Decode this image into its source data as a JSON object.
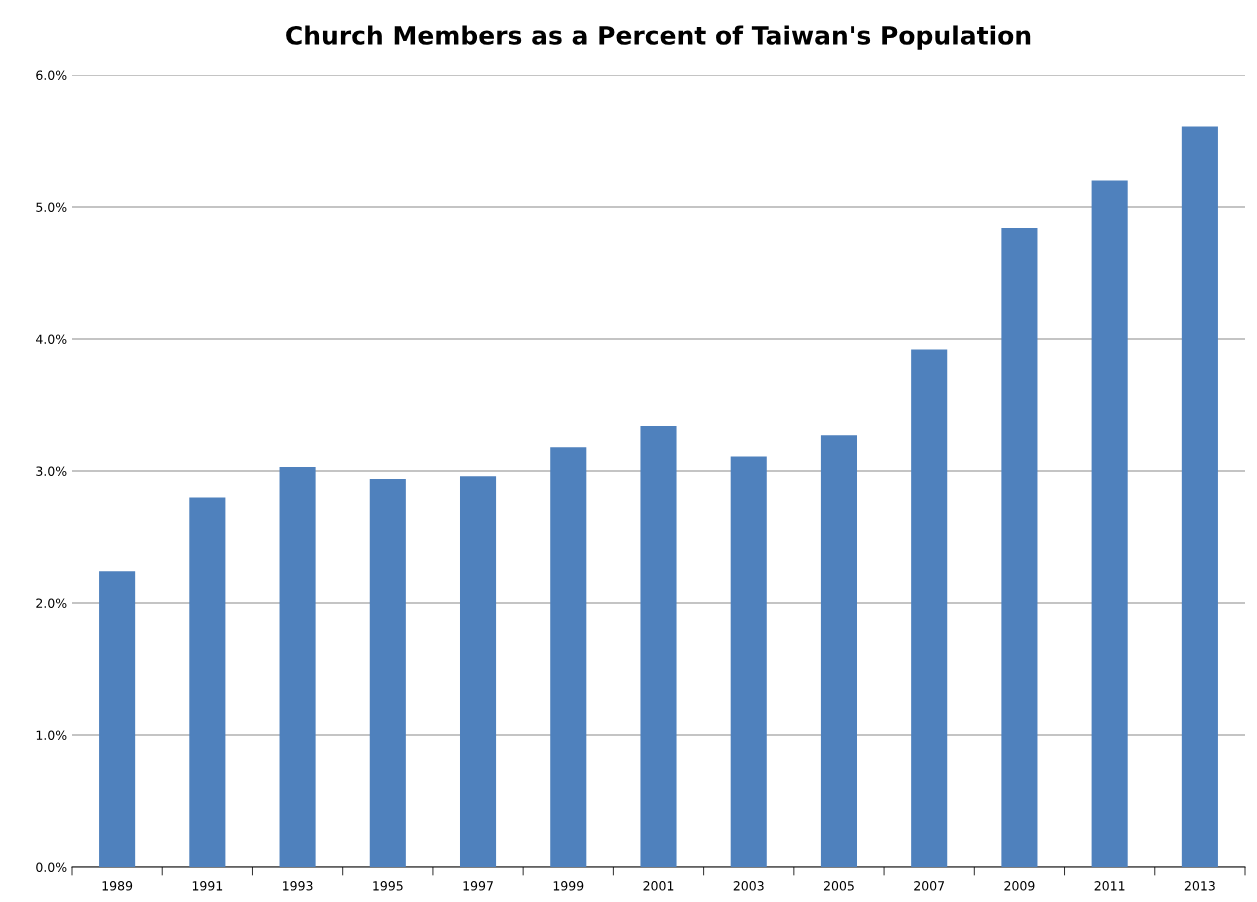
{
  "chart_data": {
    "type": "bar",
    "title": "Church Members as a Percent of Taiwan's Population",
    "categories": [
      "1989",
      "1991",
      "1993",
      "1995",
      "1997",
      "1999",
      "2001",
      "2003",
      "2005",
      "2007",
      "2009",
      "2011",
      "2013"
    ],
    "values": [
      2.24,
      2.8,
      3.03,
      2.94,
      2.96,
      3.18,
      3.34,
      3.11,
      3.27,
      3.92,
      4.84,
      5.2,
      5.61
    ],
    "color": "#4f81bd",
    "ylim": [
      0,
      6
    ],
    "yticks": [
      {
        "value": 0,
        "label": "0.0%"
      },
      {
        "value": 1,
        "label": "1.0%"
      },
      {
        "value": 2,
        "label": "2.0%"
      },
      {
        "value": 3,
        "label": "3.0%"
      },
      {
        "value": 4,
        "label": "4.0%"
      },
      {
        "value": 5,
        "label": "5.0%"
      },
      {
        "value": 6,
        "label": "6.0%"
      }
    ],
    "grid": "y"
  }
}
